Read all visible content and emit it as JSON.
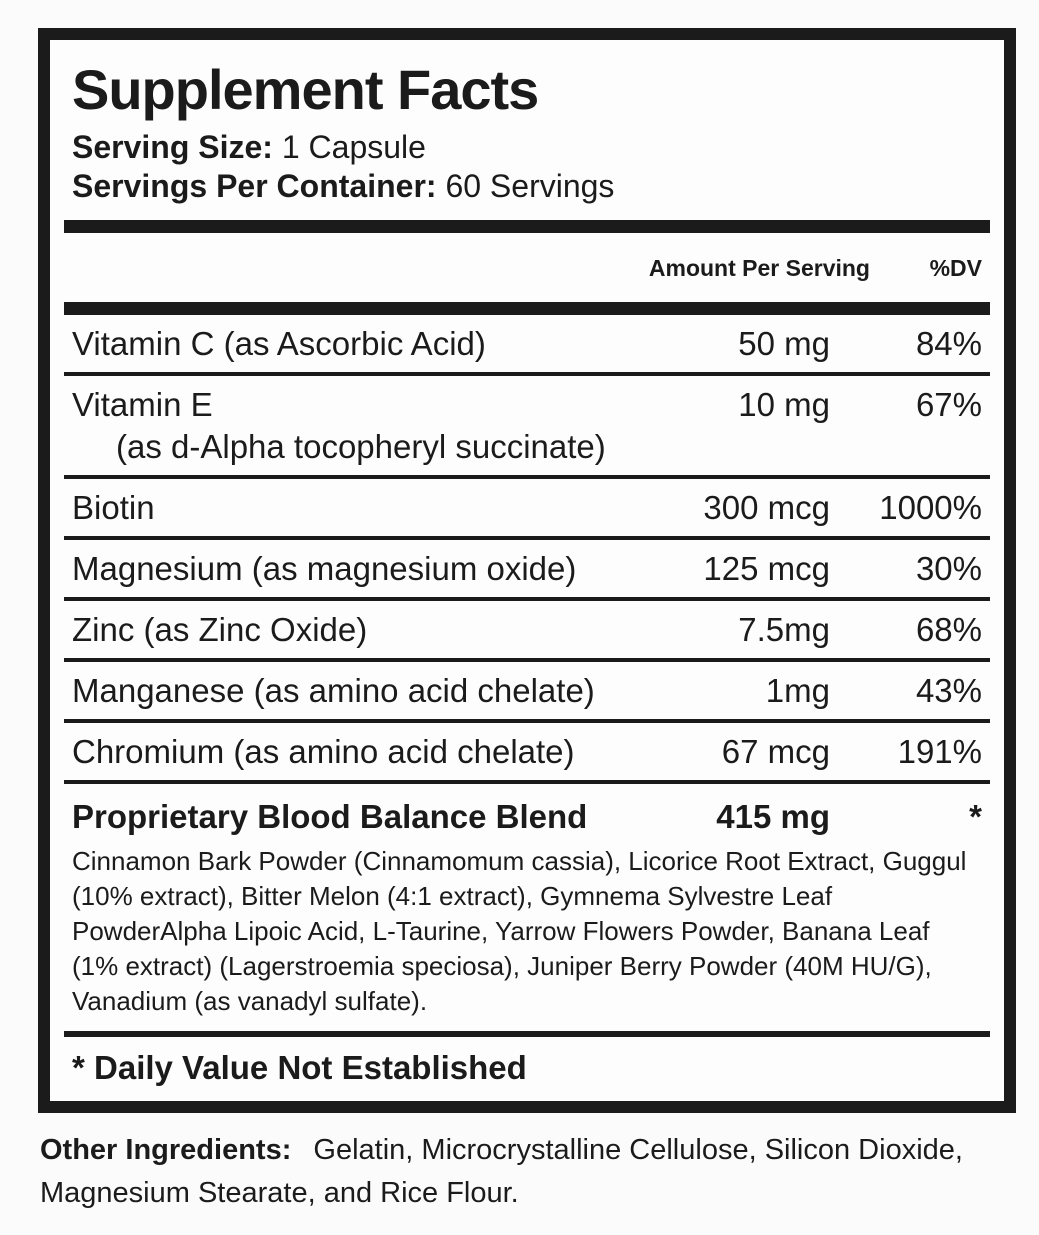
{
  "label": {
    "title": "Supplement Facts",
    "serving_size": {
      "label": "Serving Size:",
      "value": "1 Capsule"
    },
    "servings_per_container": {
      "label": "Servings Per Container:",
      "value": "60 Servings"
    },
    "columns": {
      "amount": "Amount Per Serving",
      "dv": "%DV"
    },
    "rows": [
      {
        "name": "Vitamin C (as Ascorbic Acid)",
        "amount": "50 mg",
        "dv": "84%"
      },
      {
        "name": "Vitamin E",
        "sub": "(as d-Alpha tocopheryl succinate)",
        "amount": "10 mg",
        "dv": "67%"
      },
      {
        "name": "Biotin",
        "amount": "300 mcg",
        "dv": "1000%"
      },
      {
        "name": "Magnesium (as magnesium oxide)",
        "amount": "125 mcg",
        "dv": "30%"
      },
      {
        "name": "Zinc (as Zinc Oxide)",
        "amount": "7.5mg",
        "dv": "68%"
      },
      {
        "name": "Manganese (as amino acid chelate)",
        "amount": "1mg",
        "dv": "43%"
      },
      {
        "name": "Chromium (as amino acid chelate)",
        "amount": "67 mcg",
        "dv": "191%"
      }
    ],
    "blend": {
      "name": "Proprietary Blood Balance Blend",
      "amount": "415 mg",
      "dv": "*",
      "description": "Cinnamon Bark Powder (Cinnamomum cassia), Licorice Root Extract, Guggul (10% extract), Bitter Melon (4:1 extract), Gymnema Sylvestre Leaf PowderAlpha Lipoic Acid, L-Taurine, Yarrow Flowers Powder, Banana Leaf (1% extract) (Lagerstroemia speciosa), Juniper Berry Powder (40M HU/G), Vanadium (as vanadyl sulfate)."
    },
    "footnote": "* Daily Value Not Established",
    "other_ingredients": {
      "label": "Other Ingredients:",
      "value": "Gelatin, Microcrystalline Cellulose, Silicon Dioxide, Magnesium Stearate, and Rice Flour."
    },
    "colors": {
      "text": "#1b1b1b",
      "border": "#1b1b1b",
      "background": "#fdfdfd"
    }
  }
}
